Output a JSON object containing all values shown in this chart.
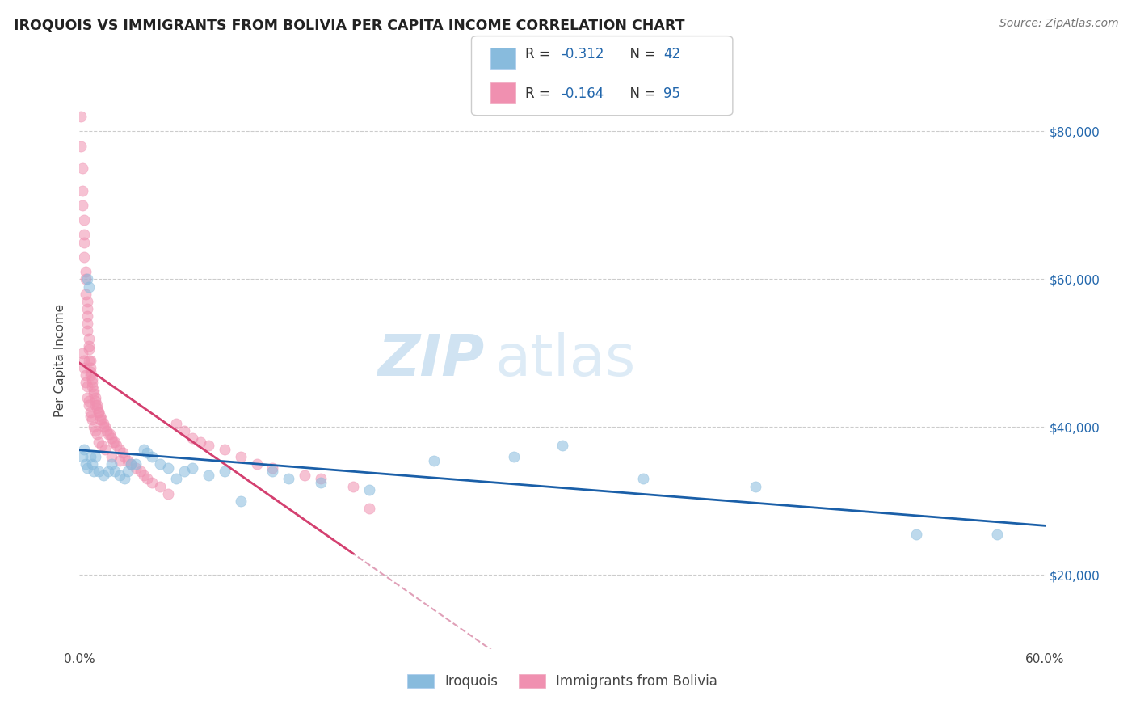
{
  "title": "IROQUOIS VS IMMIGRANTS FROM BOLIVIA PER CAPITA INCOME CORRELATION CHART",
  "source": "Source: ZipAtlas.com",
  "ylabel": "Per Capita Income",
  "ytick_labels": [
    "$20,000",
    "$40,000",
    "$60,000",
    "$80,000"
  ],
  "ytick_vals": [
    20000,
    40000,
    60000,
    80000
  ],
  "watermark_zip": "ZIP",
  "watermark_atlas": "atlas",
  "legend_iroquois_R": "-0.312",
  "legend_iroquois_N": "42",
  "legend_bolivia_R": "-0.164",
  "legend_bolivia_N": "95",
  "iroquois_color": "#88bbdd",
  "bolivia_color": "#f090b0",
  "iroquois_line_color": "#1a5fa8",
  "bolivia_line_color": "#d44070",
  "dashed_line_color": "#e0a0b8",
  "grid_color": "#cccccc",
  "xlim": [
    0.0,
    0.6
  ],
  "ylim": [
    10000,
    88000
  ],
  "iroquois_x": [
    0.002,
    0.003,
    0.004,
    0.005,
    0.005,
    0.006,
    0.007,
    0.008,
    0.009,
    0.01,
    0.012,
    0.015,
    0.018,
    0.02,
    0.022,
    0.025,
    0.028,
    0.03,
    0.032,
    0.035,
    0.04,
    0.042,
    0.045,
    0.05,
    0.055,
    0.06,
    0.065,
    0.07,
    0.08,
    0.09,
    0.1,
    0.12,
    0.13,
    0.15,
    0.18,
    0.22,
    0.27,
    0.3,
    0.35,
    0.42,
    0.52,
    0.57
  ],
  "iroquois_y": [
    36000,
    37000,
    35000,
    34500,
    60000,
    59000,
    36000,
    35000,
    34000,
    36000,
    34000,
    33500,
    34000,
    35000,
    34000,
    33500,
    33000,
    34000,
    35000,
    35000,
    37000,
    36500,
    36000,
    35000,
    34500,
    33000,
    34000,
    34500,
    33500,
    34000,
    30000,
    34000,
    33000,
    32500,
    31500,
    35500,
    36000,
    37500,
    33000,
    32000,
    25500,
    25500
  ],
  "bolivia_x": [
    0.001,
    0.001,
    0.002,
    0.002,
    0.002,
    0.003,
    0.003,
    0.003,
    0.003,
    0.004,
    0.004,
    0.004,
    0.005,
    0.005,
    0.005,
    0.005,
    0.005,
    0.006,
    0.006,
    0.006,
    0.006,
    0.007,
    0.007,
    0.007,
    0.007,
    0.008,
    0.008,
    0.008,
    0.009,
    0.009,
    0.01,
    0.01,
    0.01,
    0.011,
    0.011,
    0.012,
    0.012,
    0.013,
    0.013,
    0.014,
    0.015,
    0.015,
    0.016,
    0.017,
    0.018,
    0.019,
    0.02,
    0.021,
    0.022,
    0.023,
    0.025,
    0.027,
    0.028,
    0.03,
    0.032,
    0.035,
    0.038,
    0.04,
    0.042,
    0.045,
    0.05,
    0.055,
    0.06,
    0.065,
    0.07,
    0.075,
    0.08,
    0.09,
    0.1,
    0.11,
    0.12,
    0.14,
    0.15,
    0.17,
    0.18,
    0.002,
    0.003,
    0.003,
    0.004,
    0.004,
    0.005,
    0.005,
    0.006,
    0.006,
    0.007,
    0.007,
    0.008,
    0.009,
    0.01,
    0.011,
    0.012,
    0.014,
    0.016,
    0.02,
    0.025
  ],
  "bolivia_y": [
    82000,
    78000,
    75000,
    72000,
    70000,
    68000,
    66000,
    65000,
    63000,
    61000,
    60000,
    58000,
    57000,
    56000,
    55000,
    54000,
    53000,
    52000,
    51000,
    50500,
    49000,
    49000,
    48000,
    47500,
    47000,
    46500,
    46000,
    45500,
    45000,
    44500,
    44000,
    43500,
    43000,
    43000,
    42500,
    42000,
    42000,
    41500,
    41000,
    41000,
    40500,
    40000,
    40000,
    39500,
    39000,
    39000,
    38500,
    38000,
    38000,
    37500,
    37000,
    36500,
    36000,
    35500,
    35000,
    34500,
    34000,
    33500,
    33000,
    32500,
    32000,
    31000,
    40500,
    39500,
    38500,
    38000,
    37500,
    37000,
    36000,
    35000,
    34500,
    33500,
    33000,
    32000,
    29000,
    50000,
    49000,
    48000,
    47000,
    46000,
    45500,
    44000,
    43500,
    43000,
    42000,
    41500,
    41000,
    40000,
    39500,
    39000,
    38000,
    37500,
    37000,
    36000,
    35500
  ]
}
